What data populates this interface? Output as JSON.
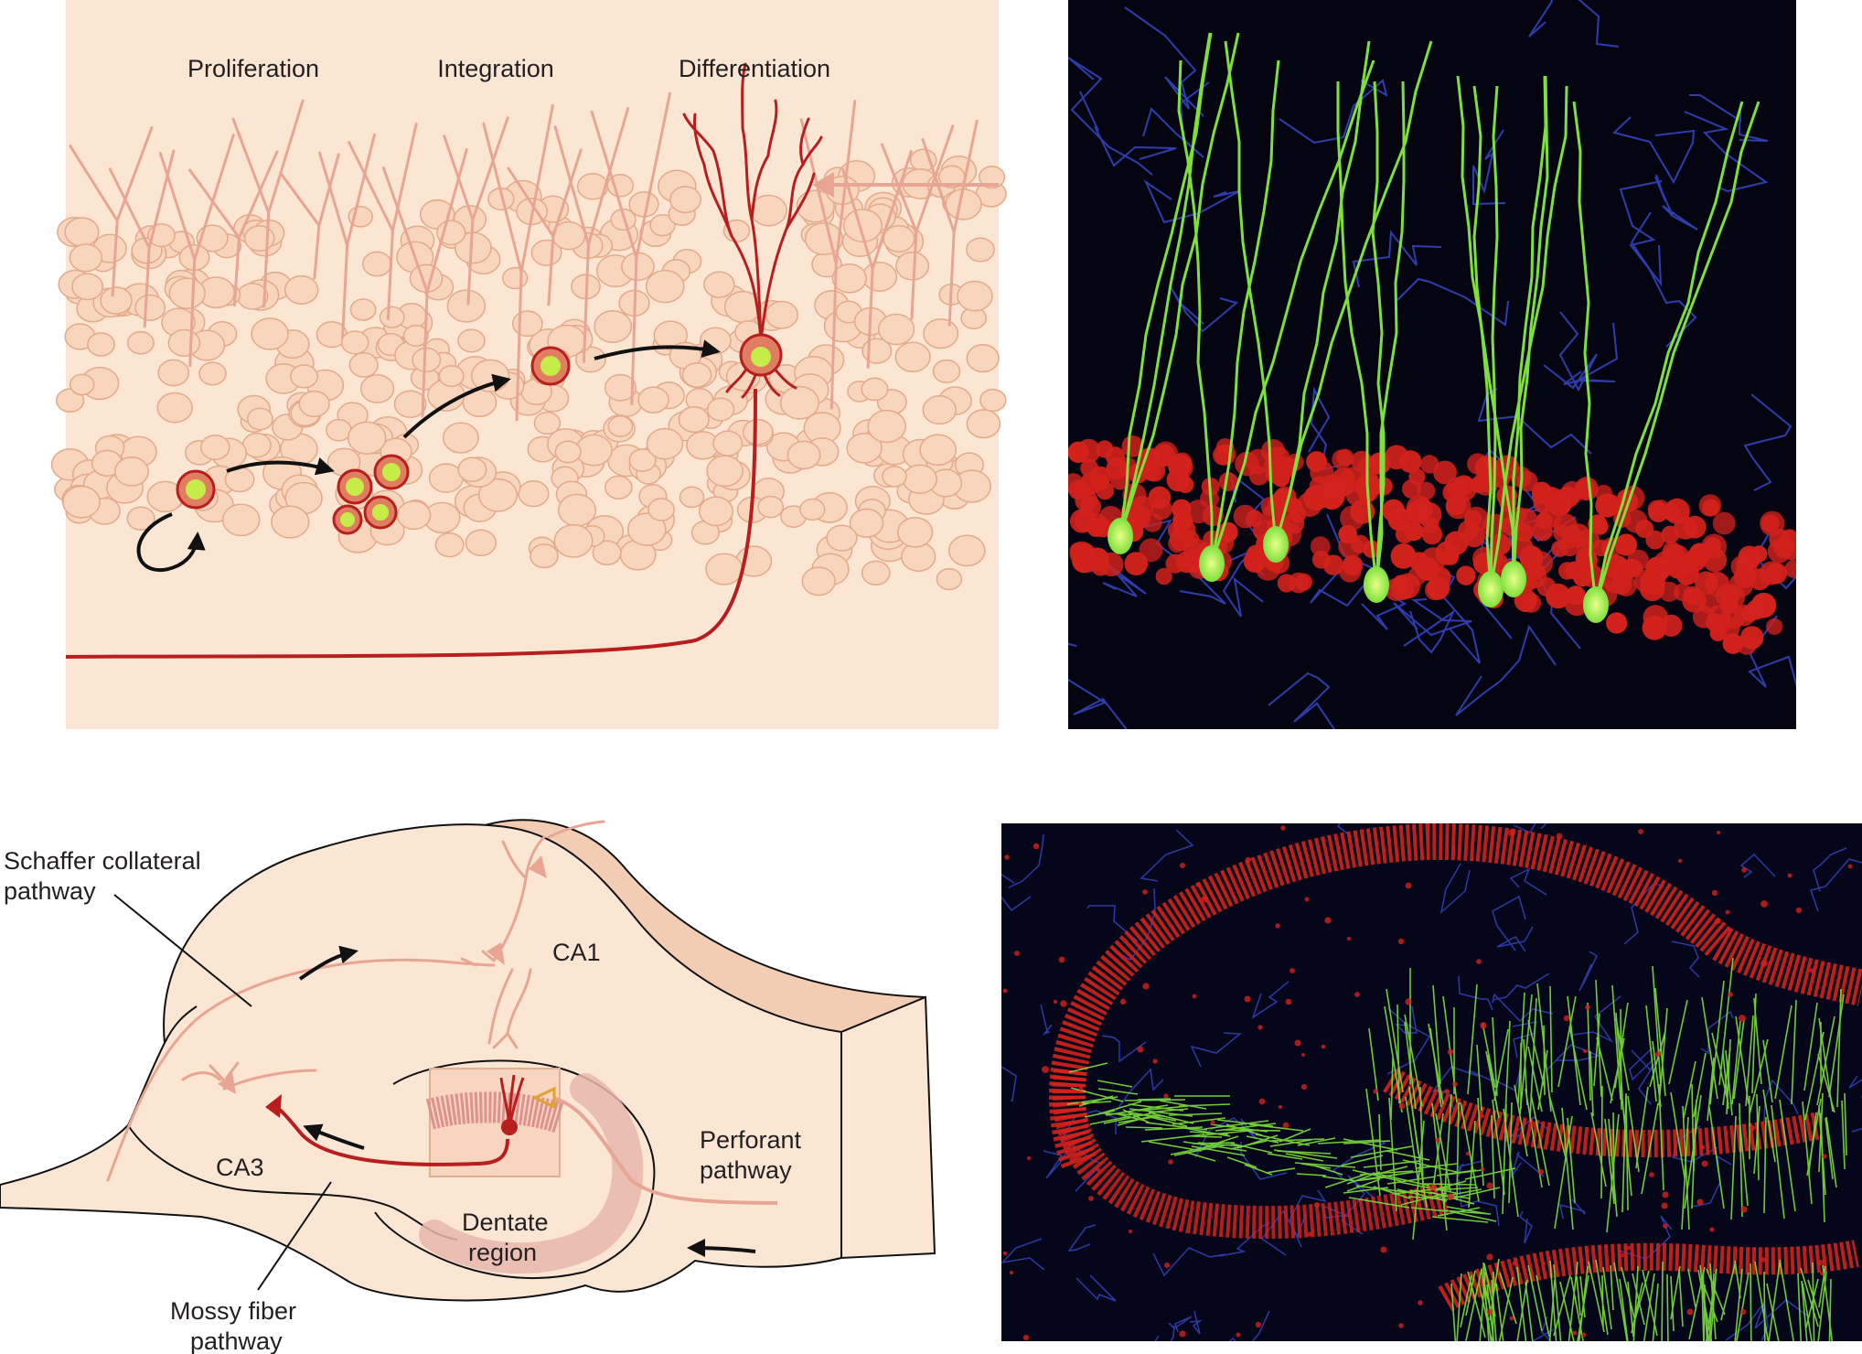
{
  "panel_a": {
    "stages": [
      "Proliferation",
      "Integration",
      "Differentiation"
    ]
  },
  "panel_c": {
    "labels": {
      "schaffer_line1": "Schaffer collateral",
      "schaffer_line2": "pathway",
      "ca1": "CA1",
      "ca3": "CA3",
      "perforant_line1": "Perforant",
      "perforant_line2": "pathway",
      "dentate_line1": "Dentate",
      "dentate_line2": "region",
      "mossy_line1": "Mossy fiber",
      "mossy_line2": "pathway"
    }
  },
  "colors": {
    "panel_bg": "#fbe6d4",
    "cell_fill": "#f8d6bd",
    "cell_stroke": "#e3a98a",
    "process_pink": "#e8a594",
    "neuron_red": "#b81e1e",
    "nucleus_green": "#c6ec4a",
    "micro_green": "#7de03c",
    "micro_red": "#d3221c",
    "micro_blue": "#3548c8",
    "dentate_dots": "#e8b6ad",
    "box_gold": "#e2a22e"
  }
}
